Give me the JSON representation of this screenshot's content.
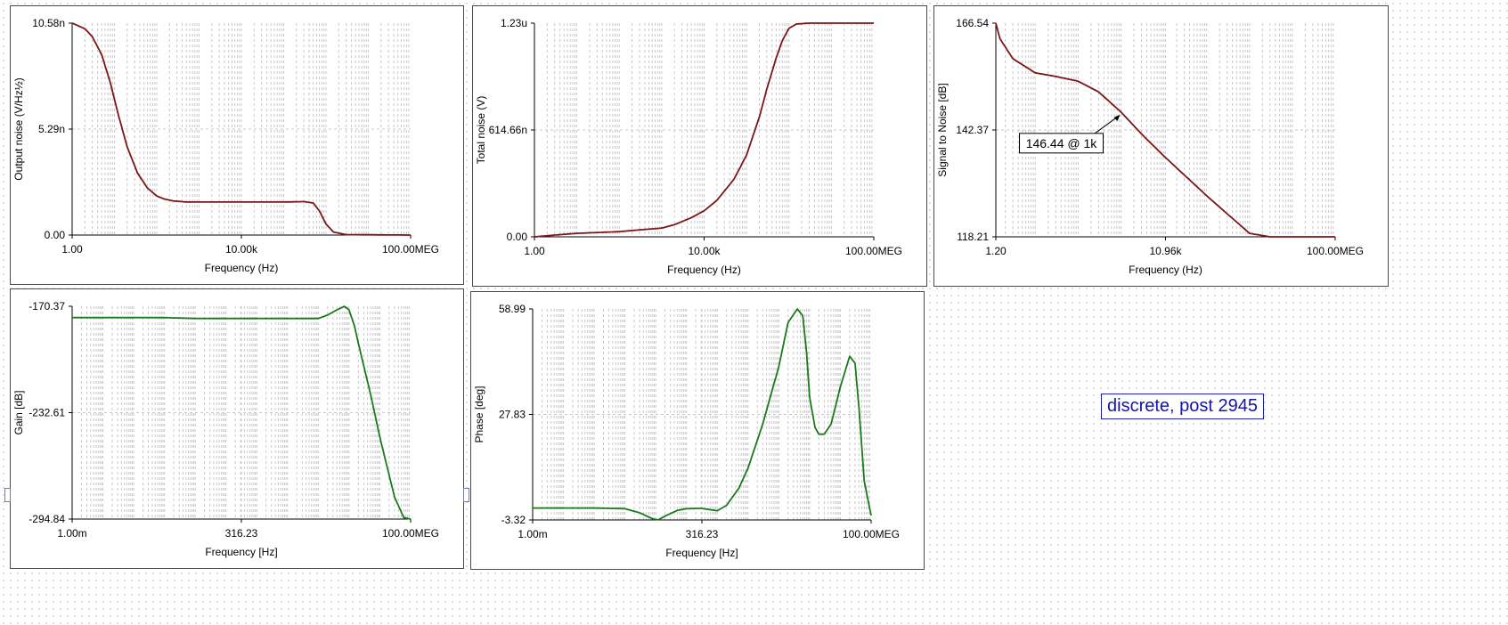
{
  "note": {
    "text": "discrete, post 2945"
  },
  "charts": [
    {
      "id": "output-noise",
      "title": "",
      "xlabel": "Frequency (Hz)",
      "ylabel": "Output noise (V/Hz½)",
      "x_ticks": [
        "1.00",
        "10.00k",
        "100.00MEG"
      ],
      "y_ticks": [
        "0.00",
        "5.29n",
        "10.58n"
      ]
    },
    {
      "id": "total-noise",
      "title": "",
      "xlabel": "Frequency (Hz)",
      "ylabel": "Total noise (V)",
      "x_ticks": [
        "1.00",
        "10.00k",
        "100.00MEG"
      ],
      "y_ticks": [
        "0.00",
        "614.66n",
        "1.23u"
      ]
    },
    {
      "id": "signal-to-noise",
      "title": "",
      "xlabel": "Frequency (Hz)",
      "ylabel": "Signal to Noise [dB]",
      "x_ticks": [
        "1.20",
        "10.96k",
        "100.00MEG"
      ],
      "y_ticks": [
        "118.21",
        "142.37",
        "166.54"
      ],
      "annotation": {
        "text": "146.44 @ 1k",
        "x": 1000,
        "y": 146.44
      }
    },
    {
      "id": "gain",
      "title": "",
      "xlabel": "Frequency [Hz]",
      "ylabel": "Gain [dB]",
      "x_ticks": [
        "1.00m",
        "316.23",
        "100.00MEG"
      ],
      "y_ticks": [
        "-294.84",
        "-232.61",
        "-170.37"
      ]
    },
    {
      "id": "phase",
      "title": "",
      "xlabel": "Frequency [Hz]",
      "ylabel": "Phase [deg]",
      "x_ticks": [
        "1.00m",
        "316.23",
        "100.00MEG"
      ],
      "y_ticks": [
        "-3.32",
        "27.83",
        "58.99"
      ]
    }
  ],
  "chart_data": [
    {
      "type": "line",
      "xscale": "log",
      "grid": true,
      "color": "#7a1616",
      "xlim": [
        1,
        100000000
      ],
      "ylim": [
        0,
        10.58
      ],
      "xlabel": "Frequency (Hz)",
      "ylabel": "Output noise (V/Hz½)",
      "y_unit": "nV/√Hz",
      "x": [
        1,
        2,
        3,
        5,
        8,
        12,
        20,
        35,
        60,
        100,
        150,
        250,
        500,
        1000,
        10000,
        100000,
        200000,
        300000,
        500000,
        700000,
        1000000,
        1500000,
        3000000,
        100000000
      ],
      "y": [
        10.58,
        10.3,
        9.9,
        9.0,
        7.6,
        6.1,
        4.4,
        3.1,
        2.35,
        1.95,
        1.8,
        1.7,
        1.65,
        1.65,
        1.65,
        1.65,
        1.66,
        1.67,
        1.6,
        1.2,
        0.55,
        0.15,
        0.02,
        0.0
      ]
    },
    {
      "type": "line",
      "xscale": "log",
      "grid": true,
      "color": "#7a1616",
      "xlim": [
        1,
        100000000
      ],
      "ylim": [
        0,
        1.23
      ],
      "xlabel": "Frequency (Hz)",
      "ylabel": "Total noise (V)",
      "y_unit": "uV",
      "x": [
        1,
        3,
        10,
        100,
        300,
        1000,
        2000,
        5000,
        10000,
        20000,
        50000,
        100000,
        200000,
        300000,
        500000,
        700000,
        1000000,
        1500000,
        3000000,
        100000000
      ],
      "y": [
        0.0,
        0.01,
        0.02,
        0.03,
        0.04,
        0.05,
        0.07,
        0.11,
        0.15,
        0.21,
        0.33,
        0.47,
        0.69,
        0.85,
        1.03,
        1.13,
        1.2,
        1.225,
        1.23,
        1.23
      ]
    },
    {
      "type": "line",
      "xscale": "log",
      "grid": true,
      "color": "#7a1616",
      "xlim": [
        1.2,
        100000000
      ],
      "ylim": [
        118.21,
        166.54
      ],
      "xlabel": "Frequency (Hz)",
      "ylabel": "Signal to Noise [dB]",
      "x": [
        1.2,
        1.5,
        3,
        10,
        30,
        100,
        300,
        1000,
        3000,
        10000,
        100000,
        1000000,
        3000000,
        5000000,
        100000000
      ],
      "y": [
        166.54,
        163.0,
        158.5,
        155.3,
        154.5,
        153.4,
        151.0,
        146.44,
        141.5,
        136.5,
        127.5,
        119.0,
        118.21,
        118.21,
        118.21
      ]
    },
    {
      "type": "line",
      "xscale": "log",
      "grid": true,
      "color": "#1a7a1a",
      "xlim": [
        0.001,
        100000000
      ],
      "ylim": [
        -294.84,
        -170.37
      ],
      "xlabel": "Frequency [Hz]",
      "ylabel": "Gain [dB]",
      "x": [
        0.001,
        1,
        10,
        1000,
        100000,
        200000,
        400000,
        700000,
        1000000,
        1500000,
        2000000,
        5000000,
        10000000,
        30000000,
        60000000,
        100000000
      ],
      "y": [
        -177.0,
        -177.0,
        -177.5,
        -177.5,
        -177.5,
        -175.5,
        -172.5,
        -170.4,
        -172.5,
        -182.0,
        -192.0,
        -222.0,
        -247.0,
        -282.0,
        -294.0,
        -294.84
      ]
    },
    {
      "type": "line",
      "xscale": "log",
      "grid": true,
      "color": "#1a7a1a",
      "xlim": [
        0.001,
        100000000
      ],
      "ylim": [
        -3.32,
        58.99
      ],
      "xlabel": "Frequency [Hz]",
      "ylabel": "Phase [deg]",
      "x": [
        0.001,
        0.1,
        1,
        3,
        8,
        12,
        20,
        50,
        100,
        300,
        1000,
        2000,
        5000,
        10000,
        30000,
        100000,
        200000,
        400000,
        600000,
        800000,
        1000000,
        1500000,
        2000000,
        3000000,
        5000000,
        10000000,
        20000000,
        30000000,
        40000000,
        60000000,
        100000000
      ],
      "y": [
        0.2,
        0.2,
        0.0,
        -1.2,
        -3.0,
        -3.3,
        -2.2,
        -0.5,
        0.0,
        0.1,
        -0.6,
        1.0,
        6.0,
        12.0,
        25.0,
        42.0,
        55.0,
        58.99,
        57.0,
        46.0,
        33.0,
        24.0,
        22.0,
        22.0,
        25.0,
        36.0,
        45.0,
        43.0,
        30.0,
        8.0,
        -2.0
      ]
    }
  ]
}
